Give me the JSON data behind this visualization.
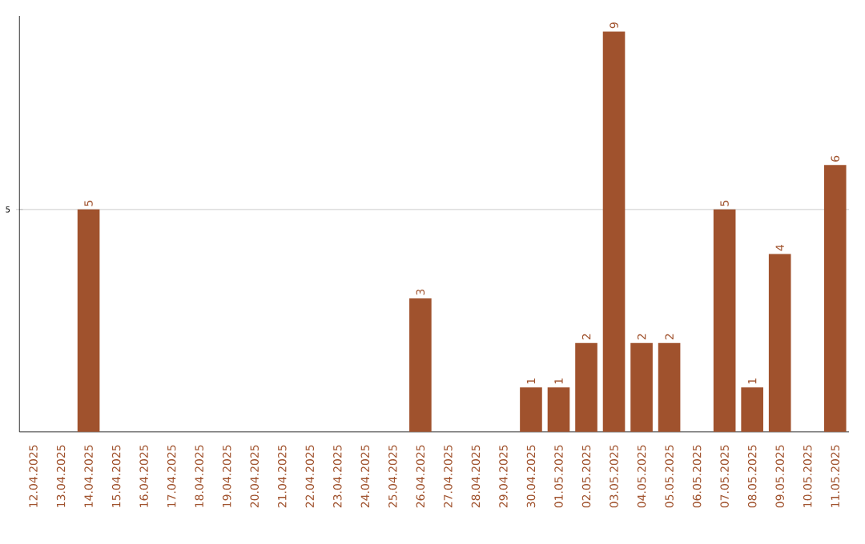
{
  "chart_data": {
    "type": "bar",
    "categories": [
      "12.04.2025",
      "13.04.2025",
      "14.04.2025",
      "15.04.2025",
      "16.04.2025",
      "17.04.2025",
      "18.04.2025",
      "19.04.2025",
      "20.04.2025",
      "21.04.2025",
      "22.04.2025",
      "23.04.2025",
      "24.04.2025",
      "25.04.2025",
      "26.04.2025",
      "27.04.2025",
      "28.04.2025",
      "29.04.2025",
      "30.04.2025",
      "01.05.2025",
      "02.05.2025",
      "03.05.2025",
      "04.05.2025",
      "05.05.2025",
      "06.05.2025",
      "07.05.2025",
      "08.05.2025",
      "09.05.2025",
      "10.05.2025",
      "11.05.2025"
    ],
    "values": [
      0,
      0,
      5,
      0,
      0,
      0,
      0,
      0,
      0,
      0,
      0,
      0,
      0,
      0,
      3,
      0,
      0,
      0,
      1,
      1,
      2,
      9,
      2,
      2,
      0,
      5,
      1,
      4,
      0,
      6
    ],
    "value_labels": [
      null,
      null,
      "5",
      null,
      null,
      null,
      null,
      null,
      null,
      null,
      null,
      null,
      null,
      null,
      "3",
      null,
      null,
      null,
      "1",
      "1",
      "2",
      "9",
      "2",
      "2",
      null,
      "5",
      "1",
      "4",
      null,
      "6"
    ],
    "color": "#a0522d",
    "ylim": [
      0,
      9.35
    ],
    "yticks": [
      5
    ],
    "grid": "y"
  }
}
